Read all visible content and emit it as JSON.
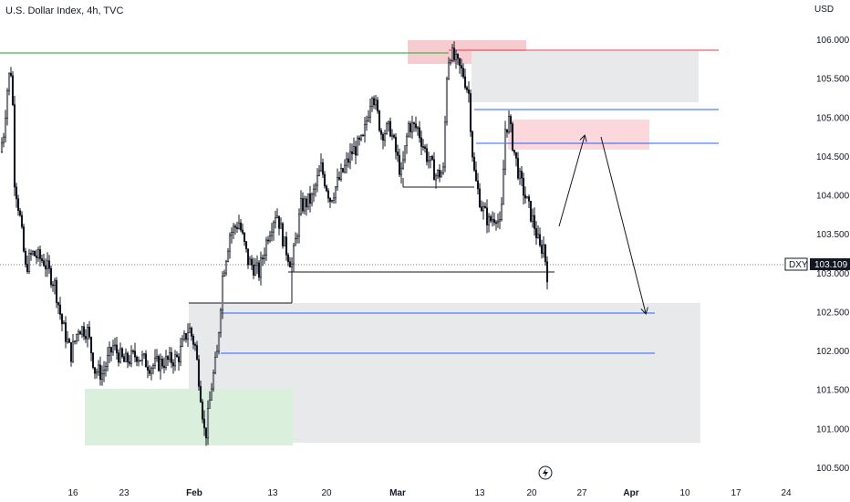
{
  "header": {
    "title": "U.S. Dollar Index, 4h, TVC",
    "currency": "USD"
  },
  "price_tag": {
    "symbol": "DXY",
    "value": "103.109",
    "color": "#131722"
  },
  "colors": {
    "candle": "#131722",
    "green_line": "#4caf50",
    "red_line": "#f23645",
    "blue_line": "#2962ff",
    "black_line": "#131722",
    "zone_gray": "#e8e9eb",
    "zone_green": "#daf0dc",
    "zone_pink": "#fcd7dc",
    "zone_pink_strong": "#f3b7bd"
  },
  "chart_data": {
    "type": "candlestick",
    "title": "U.S. Dollar Index, 4h, TVC",
    "ylabel": "USD",
    "ylim": [
      100.4,
      106.35
    ],
    "y_ticks": [
      "106.000",
      "105.500",
      "105.000",
      "104.500",
      "104.000",
      "103.500",
      "103.000",
      "102.500",
      "102.000",
      "101.500",
      "101.000",
      "100.500"
    ],
    "x_ticks": [
      "16",
      "23",
      "Feb",
      "13",
      "20",
      "Mar",
      "13",
      "20",
      "27",
      "Apr",
      "10",
      "17",
      "24"
    ],
    "last_price": 103.109,
    "key_points": [
      {
        "x": "~Jan 13",
        "y": 105.65,
        "note": "left spike high"
      },
      {
        "x": "~Jan 20",
        "y": 101.5,
        "note": "low"
      },
      {
        "x": "Feb 2",
        "y": 100.82,
        "note": "swing low"
      },
      {
        "x": "~Feb 27",
        "y": 105.35,
        "note": "high"
      },
      {
        "x": "~Mar 8",
        "y": 105.88,
        "note": "peak"
      },
      {
        "x": "~Mar 16",
        "y": 103.5,
        "note": "low"
      },
      {
        "x": "~Mar 17",
        "y": 105.1,
        "note": "rebound high"
      },
      {
        "x": "~Mar 22",
        "y": 102.98,
        "note": "latest"
      }
    ],
    "horizontal_levels": [
      {
        "y": 105.85,
        "color": "green",
        "span": "left-to-peak"
      },
      {
        "y": 105.85,
        "color": "red",
        "span": "peak-to-right"
      },
      {
        "y": 105.1,
        "color": "blue"
      },
      {
        "y": 104.67,
        "color": "blue"
      },
      {
        "y": 102.47,
        "color": "blue"
      },
      {
        "y": 101.95,
        "color": "blue"
      },
      {
        "y": 104.1,
        "color": "black"
      },
      {
        "y": 102.98,
        "color": "black"
      },
      {
        "y": 102.63,
        "color": "black"
      }
    ],
    "zones": [
      {
        "color": "pink",
        "y_range": [
          105.72,
          106.02
        ]
      },
      {
        "color": "gray",
        "y_range": [
          105.17,
          105.82
        ]
      },
      {
        "color": "pink",
        "y_range": [
          104.58,
          104.97
        ]
      },
      {
        "color": "gray",
        "y_range": [
          100.8,
          102.6
        ]
      },
      {
        "color": "green",
        "y_range": [
          100.78,
          101.5
        ]
      }
    ],
    "projection": [
      {
        "from": 103.48,
        "to": 104.77
      },
      {
        "from": 104.77,
        "to": 102.47
      }
    ],
    "grid": false
  }
}
